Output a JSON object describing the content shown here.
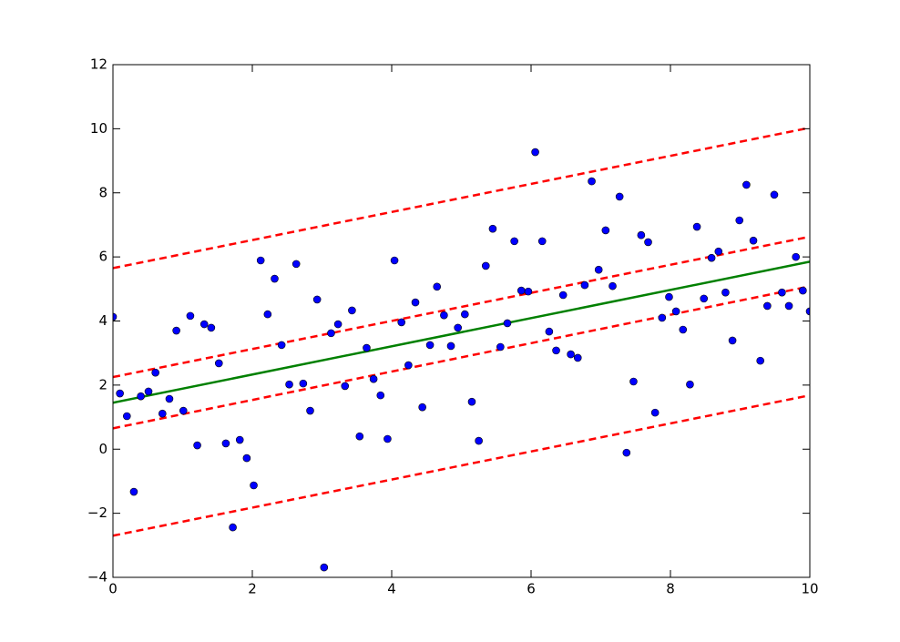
{
  "chart_data": {
    "type": "scatter",
    "x": [
      0,
      0.1,
      0.2,
      0.3,
      0.4,
      0.51,
      0.61,
      0.71,
      0.81,
      0.91,
      1.01,
      1.11,
      1.21,
      1.31,
      1.41,
      1.52,
      1.62,
      1.72,
      1.82,
      1.92,
      2.02,
      2.12,
      2.22,
      2.32,
      2.42,
      2.53,
      2.63,
      2.73,
      2.83,
      2.93,
      3.03,
      3.13,
      3.23,
      3.33,
      3.43,
      3.54,
      3.64,
      3.74,
      3.84,
      3.94,
      4.04,
      4.14,
      4.24,
      4.34,
      4.44,
      4.55,
      4.65,
      4.75,
      4.85,
      4.95,
      5.05,
      5.15,
      5.25,
      5.35,
      5.45,
      5.56,
      5.66,
      5.76,
      5.86,
      5.96,
      6.06,
      6.16,
      6.26,
      6.36,
      6.46,
      6.57,
      6.67,
      6.77,
      6.87,
      6.97,
      7.07,
      7.17,
      7.27,
      7.37,
      7.47,
      7.58,
      7.68,
      7.78,
      7.88,
      7.98,
      8.08,
      8.18,
      8.28,
      8.38,
      8.48,
      8.59,
      8.69,
      8.79,
      8.89,
      8.99,
      9.09,
      9.19,
      9.29,
      9.39,
      9.49,
      9.6,
      9.7,
      9.8,
      9.9,
      10
    ],
    "series": [
      {
        "color": "#0000ff",
        "values": [
          4.13,
          1.74,
          1.03,
          -1.33,
          1.65,
          1.8,
          2.39,
          1.11,
          1.57,
          3.7,
          1.2,
          4.16,
          0.12,
          3.9,
          3.79,
          2.68,
          0.18,
          -2.44,
          0.29,
          -0.28,
          -1.13,
          5.89,
          4.21,
          5.32,
          3.25,
          2.02,
          5.78,
          2.05,
          1.2,
          4.67,
          -3.69,
          3.62,
          3.9,
          1.97,
          4.33,
          0.4,
          3.16,
          2.19,
          1.68,
          0.32,
          5.89,
          3.96,
          2.62,
          4.58,
          1.31,
          3.25,
          5.07,
          4.18,
          3.22,
          3.79,
          4.21,
          1.48,
          0.26,
          5.72,
          6.88,
          3.19,
          3.93,
          6.49,
          4.95,
          4.92,
          9.27,
          6.49,
          3.67,
          3.08,
          4.81,
          2.96,
          2.85,
          5.12,
          8.36,
          5.6,
          6.83,
          5.09,
          7.88,
          -0.11,
          2.11,
          6.68,
          6.46,
          1.14,
          4.1,
          4.75,
          4.3,
          3.73,
          2.02,
          6.94,
          4.7,
          5.97,
          6.17,
          4.89,
          3.39,
          7.14,
          8.25,
          6.51,
          2.76,
          4.47,
          7.94,
          4.89,
          4.47,
          6.0,
          4.95,
          4.3
        ]
      }
    ],
    "lines": [
      {
        "color": "#008000",
        "dashed": false,
        "x": [
          0,
          10
        ],
        "values": [
          1.45,
          5.85
        ]
      },
      {
        "color": "#ff0000",
        "dashed": true,
        "x": [
          0,
          9.93
        ],
        "values": [
          2.25,
          6.6
        ]
      },
      {
        "color": "#ff0000",
        "dashed": true,
        "x": [
          0,
          9.93
        ],
        "values": [
          0.65,
          5.05
        ]
      },
      {
        "color": "#ff0000",
        "dashed": true,
        "x": [
          0,
          9.93
        ],
        "values": [
          5.65,
          10.0
        ]
      },
      {
        "color": "#ff0000",
        "dashed": true,
        "x": [
          0,
          9.93
        ],
        "values": [
          -2.7,
          1.65
        ]
      }
    ],
    "xlim": [
      0,
      10
    ],
    "xticks": [
      0,
      2,
      4,
      6,
      8,
      10
    ],
    "ylim": [
      -4,
      12
    ],
    "yticks": [
      {
        "value": -4,
        "label": "−4"
      },
      {
        "value": -2,
        "label": "−2"
      },
      0,
      2,
      4,
      6,
      8,
      10,
      12
    ]
  }
}
